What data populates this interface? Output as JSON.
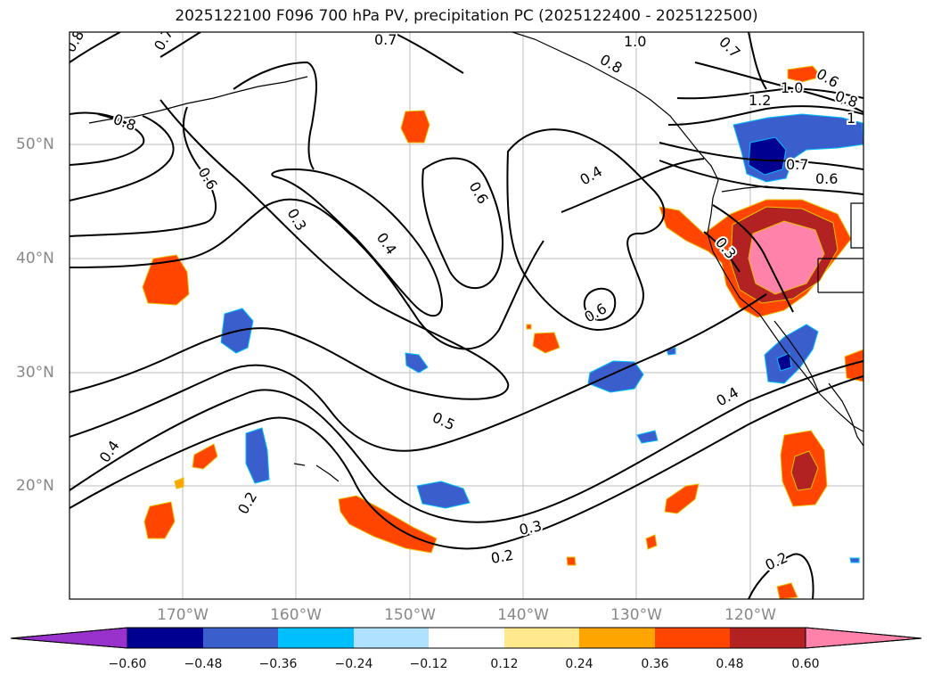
{
  "title": "2025122100 F096 700 hPa PV, precipitation PC (2025122400 - 2025122500)",
  "lon_labels": [
    "170°W",
    "160°W",
    "150°W",
    "140°W",
    "130°W",
    "120°W"
  ],
  "lat_labels": [
    "50°N",
    "40°N",
    "30°N",
    "20°N"
  ],
  "colorbar": {
    "colors": [
      "#9932cc",
      "#000090",
      "#3a5fcd",
      "#00bfff",
      "#b0e2ff",
      "#ffffff",
      "#ffe98c",
      "#ffa500",
      "#ff4500",
      "#b22222",
      "#ff82ab"
    ],
    "ticks": [
      "−0.60",
      "−0.48",
      "−0.36",
      "−0.24",
      "−0.12",
      "0.12",
      "0.24",
      "0.36",
      "0.48",
      "0.60"
    ]
  },
  "contour_labels": [
    "0.8",
    "0.7",
    "0.7",
    "1.0",
    "0.7",
    "0.8",
    "0.6",
    "1.0",
    "0.8",
    "1.2",
    "1",
    "0.8",
    "0.6",
    "0.7",
    "0.6",
    "0.4",
    "0.6",
    "0.3",
    "0.4",
    "0.3",
    "0.6",
    "0.5",
    "0.4",
    "0.4",
    "0.2",
    "0.3",
    "0.2",
    "0.2"
  ]
}
